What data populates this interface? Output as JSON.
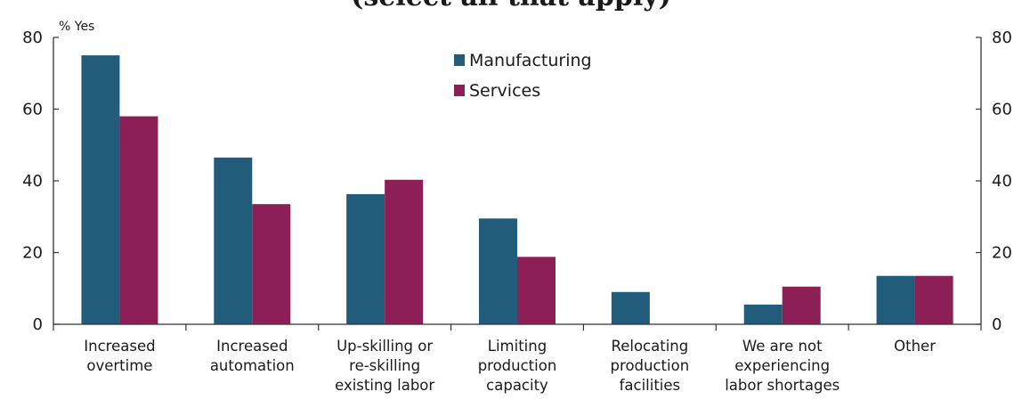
{
  "chart_data": {
    "type": "bar",
    "title": "(select all that apply)",
    "ylabel": "% Yes",
    "ylim": [
      0,
      80
    ],
    "yticks": [
      0,
      20,
      40,
      60,
      80
    ],
    "grid": false,
    "legend_position": "top-center",
    "categories": [
      [
        "Increased",
        "overtime"
      ],
      [
        "Increased",
        "automation"
      ],
      [
        "Up-skilling or",
        "re-skilling",
        "existing labor"
      ],
      [
        "Limiting",
        "production",
        "capacity"
      ],
      [
        "Relocating",
        "production",
        "facilities"
      ],
      [
        "We are not",
        "experiencing",
        "labor shortages"
      ],
      [
        "Other"
      ]
    ],
    "series": [
      {
        "name": "Manufacturing",
        "color": "#215c7a",
        "values": [
          75,
          46.5,
          36.3,
          29.5,
          9,
          5.5,
          13.5
        ]
      },
      {
        "name": "Services",
        "color": "#8c1f55",
        "values": [
          58,
          33.5,
          40.3,
          18.8,
          0,
          10.5,
          13.5
        ]
      }
    ]
  }
}
